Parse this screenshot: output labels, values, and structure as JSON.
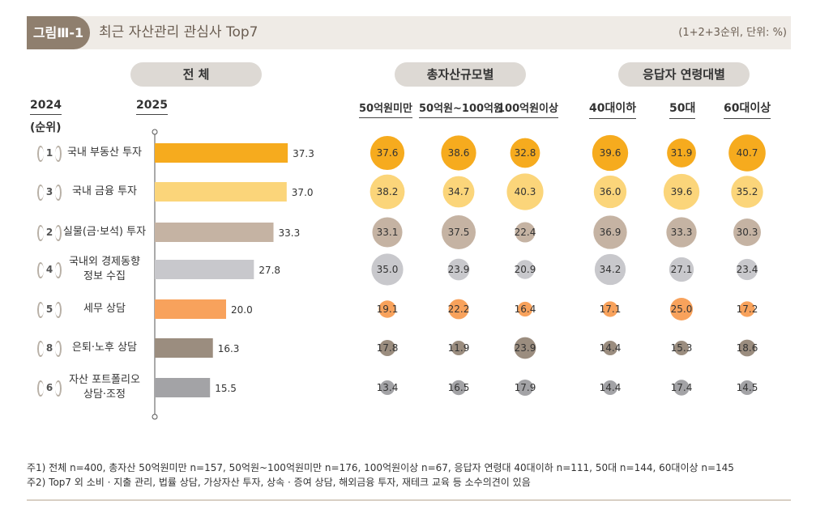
{
  "header": {
    "figure_label": "그림Ⅲ-1",
    "title": "최근 자산관리 관심사 Top7",
    "note": "(1+2+3순위, 단위: %)"
  },
  "groups": {
    "total": "전 체",
    "asset_size": "총자산규모별",
    "age": "응답자 연령대별"
  },
  "year_headers": {
    "prev": "2024",
    "prev_sub": "(순위)",
    "curr": "2025"
  },
  "chart_data": {
    "type": "bar",
    "title": "최근 자산관리 관심사 Top7",
    "unit": "%",
    "categories": [
      "국내 부동산 투자",
      "국내 금융 투자",
      "실물(금·보석) 투자",
      "국내외 경제동향 정보 수집",
      "세무 상담",
      "은퇴·노후 상담",
      "자산 포트폴리오 상담·조정"
    ],
    "category_lines": [
      [
        "국내 부동산 투자"
      ],
      [
        "국내 금융 투자"
      ],
      [
        "실물(금·보석) 투자"
      ],
      [
        "국내외 경제동향",
        "정보 수집"
      ],
      [
        "세무 상담"
      ],
      [
        "은퇴·노후 상담"
      ],
      [
        "자산 포트폴리오",
        "상담·조정"
      ]
    ],
    "rank_2024": [
      "1",
      "3",
      "2",
      "4",
      "5",
      "8",
      "6"
    ],
    "values": [
      37.3,
      37.0,
      33.3,
      27.8,
      20.0,
      16.3,
      15.5
    ],
    "value_labels": [
      "37.3",
      "37.0",
      "33.3",
      "27.8",
      "20.0",
      "16.3",
      "15.5"
    ],
    "colors": [
      "#f6ab1e",
      "#fbd57a",
      "#c5b3a3",
      "#c8c8cc",
      "#f8a25c",
      "#9b8d7f",
      "#a3a3a6"
    ],
    "xlim": [
      0,
      40
    ],
    "series": [
      {
        "name": "50억원미만",
        "group": "asset_size",
        "values": [
          37.6,
          38.2,
          33.1,
          35.0,
          19.1,
          17.8,
          13.4
        ],
        "labels": [
          "37.6",
          "38.2",
          "33.1",
          "35.0",
          "19.1",
          "17.8",
          "13.4"
        ]
      },
      {
        "name": "50억원~100억원",
        "group": "asset_size",
        "values": [
          38.6,
          34.7,
          37.5,
          23.9,
          22.2,
          11.9,
          16.5
        ],
        "labels": [
          "38.6",
          "34.7",
          "37.5",
          "23.9",
          "22.2",
          "11.9",
          "16.5"
        ]
      },
      {
        "name": "100억원이상",
        "group": "asset_size",
        "values": [
          32.8,
          40.3,
          22.4,
          20.9,
          16.4,
          23.9,
          17.9
        ],
        "labels": [
          "32.8",
          "40.3",
          "22.4",
          "20.9",
          "16.4",
          "23.9",
          "17.9"
        ]
      },
      {
        "name": "40대이하",
        "group": "age",
        "values": [
          39.6,
          36.0,
          36.9,
          34.2,
          17.1,
          14.4,
          14.4
        ],
        "labels": [
          "39.6",
          "36.0",
          "36.9",
          "34.2",
          "17.1",
          "14.4",
          "14.4"
        ]
      },
      {
        "name": "50대",
        "group": "age",
        "values": [
          31.9,
          39.6,
          33.3,
          27.1,
          25.0,
          15.3,
          17.4
        ],
        "labels": [
          "31.9",
          "39.6",
          "33.3",
          "27.1",
          "25.0",
          "15.3",
          "17.4"
        ]
      },
      {
        "name": "60대이상",
        "group": "age",
        "values": [
          40.7,
          35.2,
          30.3,
          23.4,
          17.2,
          18.6,
          14.5
        ],
        "labels": [
          "40.7",
          "35.2",
          "30.3",
          "23.4",
          "17.2",
          "18.6",
          "14.5"
        ]
      }
    ]
  },
  "footnotes": [
    "주1) 전체 n=400, 총자산 50억원미만 n=157, 50억원~100억원미만 n=176, 100억원이상 n=67, 응답자 연령대 40대이하 n=111, 50대 n=144, 60대이상 n=145",
    "주2) Top7 외 소비 · 지출 관리, 법률 상담, 가상자산 투자, 상속 · 증여 상담, 해외금융 투자, 재테크 교육 등 소수의견이 있음"
  ]
}
